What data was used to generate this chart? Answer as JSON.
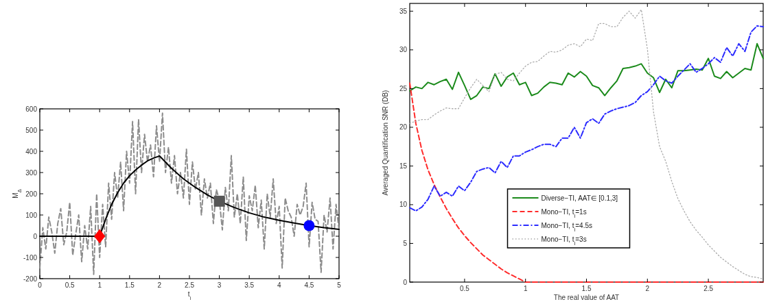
{
  "chart_data": [
    {
      "type": "line",
      "xlabel": "t$_{i}$",
      "ylabel": "M$_{Δ}$",
      "xlim": [
        0,
        5
      ],
      "ylim": [
        -200,
        600
      ],
      "xticks": [
        0,
        0.5,
        1,
        1.5,
        2,
        2.5,
        3,
        3.5,
        4,
        4.5,
        5
      ],
      "yticks": [
        -200,
        -100,
        0,
        100,
        200,
        300,
        400,
        500,
        600
      ],
      "grid": false,
      "legend": false,
      "series": [
        {
          "color": "#8c8c8c",
          "line_style": "dashed",
          "x": [
            0,
            0.05,
            0.1,
            0.15,
            0.2,
            0.25,
            0.3,
            0.35,
            0.4,
            0.45,
            0.5,
            0.55,
            0.6,
            0.65,
            0.7,
            0.75,
            0.8,
            0.85,
            0.9,
            0.95,
            1,
            1.05,
            1.1,
            1.15,
            1.2,
            1.25,
            1.3,
            1.35,
            1.4,
            1.45,
            1.5,
            1.55,
            1.6,
            1.65,
            1.7,
            1.75,
            1.8,
            1.85,
            1.9,
            1.95,
            2,
            2.05,
            2.1,
            2.15,
            2.2,
            2.25,
            2.3,
            2.35,
            2.4,
            2.45,
            2.5,
            2.55,
            2.6,
            2.65,
            2.7,
            2.75,
            2.8,
            2.85,
            2.9,
            2.95,
            3,
            3.05,
            3.1,
            3.15,
            3.2,
            3.25,
            3.3,
            3.35,
            3.4,
            3.45,
            3.5,
            3.55,
            3.6,
            3.65,
            3.7,
            3.75,
            3.8,
            3.85,
            3.9,
            3.95,
            4,
            4.05,
            4.1,
            4.15,
            4.2,
            4.25,
            4.3,
            4.35,
            4.4,
            4.45,
            4.5,
            4.55,
            4.6,
            4.65,
            4.7,
            4.75,
            4.8,
            4.85,
            4.9,
            4.95,
            5
          ],
          "values": [
            -150,
            40,
            -60,
            90,
            20,
            -80,
            60,
            130,
            -40,
            20,
            160,
            -90,
            10,
            100,
            -120,
            50,
            -60,
            140,
            -180,
            200,
            -100,
            150,
            -50,
            250,
            80,
            300,
            180,
            350,
            120,
            400,
            250,
            540,
            200,
            550,
            300,
            480,
            350,
            430,
            280,
            520,
            350,
            580,
            300,
            420,
            250,
            380,
            200,
            300,
            180,
            410,
            150,
            350,
            220,
            300,
            100,
            270,
            180,
            250,
            60,
            220,
            170,
            30,
            230,
            120,
            380,
            90,
            200,
            60,
            280,
            -20,
            190,
            120,
            240,
            40,
            170,
            -60,
            200,
            90,
            270,
            60,
            140,
            -150,
            180,
            120,
            90,
            0,
            150,
            100,
            140,
            250,
            -50,
            160,
            80,
            70,
            -170,
            100,
            20,
            180,
            -60,
            150,
            30
          ]
        },
        {
          "color": "#000000",
          "line_style": "solid",
          "x": [
            0,
            0.5,
            1,
            1.1,
            1.2,
            1.3,
            1.4,
            1.5,
            1.6,
            1.7,
            1.8,
            1.9,
            2,
            2.2,
            2.4,
            2.6,
            2.8,
            3,
            3.25,
            3.5,
            3.75,
            4,
            4.25,
            4.5,
            4.75,
            5
          ],
          "values": [
            0,
            0,
            0,
            80,
            150,
            205,
            250,
            285,
            312,
            335,
            355,
            368,
            378,
            320,
            270,
            230,
            195,
            165,
            135,
            110,
            90,
            75,
            62,
            50,
            40,
            32
          ]
        },
        {
          "type": "scatter",
          "marker": "diamond",
          "color": "#ff0000",
          "x": [
            1
          ],
          "values": [
            0
          ]
        },
        {
          "type": "scatter",
          "marker": "square",
          "color": "#555555",
          "x": [
            3
          ],
          "values": [
            165
          ]
        },
        {
          "type": "scatter",
          "marker": "circle",
          "color": "#0000ff",
          "x": [
            4.5
          ],
          "values": [
            50
          ]
        }
      ]
    },
    {
      "type": "line",
      "xlabel": "The real value of AAT",
      "ylabel": "Averaged Quantification SNR (DB)",
      "xlim": [
        0.05,
        2.95
      ],
      "ylim": [
        0,
        36
      ],
      "xticks": [
        0.5,
        1,
        1.5,
        2,
        2.5
      ],
      "yticks": [
        0,
        5,
        10,
        15,
        20,
        25,
        30,
        35
      ],
      "grid": false,
      "legend": "bottom",
      "x": [
        0.05,
        0.1,
        0.15,
        0.2,
        0.25,
        0.3,
        0.35,
        0.4,
        0.45,
        0.5,
        0.55,
        0.6,
        0.65,
        0.7,
        0.75,
        0.8,
        0.85,
        0.9,
        0.95,
        1,
        1.05,
        1.1,
        1.15,
        1.2,
        1.25,
        1.3,
        1.35,
        1.4,
        1.45,
        1.5,
        1.55,
        1.6,
        1.65,
        1.7,
        1.75,
        1.8,
        1.85,
        1.9,
        1.95,
        2,
        2.05,
        2.1,
        2.15,
        2.2,
        2.25,
        2.3,
        2.35,
        2.4,
        2.45,
        2.5,
        2.55,
        2.6,
        2.65,
        2.7,
        2.75,
        2.8,
        2.85,
        2.9,
        2.95
      ],
      "series": [
        {
          "name": "Diverse−TI, AAT∈ [0.1,3]",
          "color": "#1a8a1a",
          "line_style": "solid",
          "values": [
            24.7,
            25.2,
            25.0,
            25.8,
            25.5,
            25.9,
            26.2,
            24.9,
            27.1,
            25.4,
            23.6,
            24.1,
            25.2,
            25.0,
            26.9,
            25.3,
            26.5,
            27.0,
            25.5,
            25.8,
            24.1,
            24.4,
            25.2,
            25.8,
            25.7,
            25.5,
            27.0,
            26.5,
            27.2,
            26.6,
            25.4,
            25.1,
            24.1,
            25.1,
            26.0,
            27.6,
            27.7,
            27.9,
            28.2,
            27.0,
            26.4,
            24.5,
            26.2,
            25.1,
            27.3,
            27.3,
            27.4,
            27.5,
            27.4,
            28.9,
            26.6,
            26.3,
            27.2,
            26.4,
            27.0,
            27.6,
            27.4,
            30.8,
            28.9
          ]
        },
        {
          "name": "Mono−TI, t$_{i}$=1s",
          "color": "#ff2a2a",
          "line_style": "dashed",
          "x": [
            0.05,
            0.1,
            0.15,
            0.2,
            0.25,
            0.3,
            0.35,
            0.4,
            0.45,
            0.5,
            0.55,
            0.6,
            0.65,
            0.7,
            0.75,
            0.8,
            0.85,
            0.9,
            0.95,
            1,
            2.95
          ],
          "values": [
            25.7,
            20.5,
            17,
            14.5,
            12.6,
            11,
            9.5,
            8.2,
            7,
            6,
            5.1,
            4.3,
            3.5,
            2.9,
            2.3,
            1.7,
            1.2,
            0.8,
            0.4,
            0,
            0
          ]
        },
        {
          "name": "Mono−TI, t$_{i}$=4.5s",
          "color": "#2a2aff",
          "line_style": "dashdot",
          "values": [
            9.6,
            9.2,
            9.7,
            10.7,
            12.4,
            11.1,
            11.6,
            11.1,
            12.4,
            11.8,
            12.9,
            14.3,
            14.6,
            14.8,
            14.1,
            15.6,
            14.8,
            16.3,
            16.3,
            16.8,
            17.1,
            17.5,
            17.8,
            17.8,
            17.5,
            18.6,
            18.6,
            20,
            18.6,
            20.6,
            21.1,
            20.5,
            21.7,
            22.1,
            22.4,
            22.6,
            22.8,
            23.2,
            24.1,
            24.6,
            25.5,
            26.6,
            26,
            25.7,
            26.6,
            27.4,
            28.2,
            27.1,
            27.6,
            28.2,
            29,
            28.4,
            30.3,
            29.2,
            30.8,
            29.8,
            32.3,
            33.1,
            33
          ]
        },
        {
          "name": "Mono−TI, t$_{i}$=3s",
          "color": "#aaaaaa",
          "line_style": "dotted",
          "values": [
            20.5,
            20.8,
            21,
            21,
            21.6,
            22.1,
            22.5,
            22.4,
            22.4,
            23.8,
            25.1,
            26.2,
            25.4,
            24.6,
            26.8,
            27.1,
            26.2,
            26,
            27,
            27.9,
            28.4,
            28.5,
            29.2,
            29.8,
            29.7,
            30,
            30.6,
            30.8,
            30.4,
            31.4,
            31.2,
            33.4,
            33.4,
            33,
            33,
            34.2,
            35,
            34.1,
            35.2,
            30.1,
            22,
            17.5,
            15.6,
            13,
            10.8,
            9.2,
            7.8,
            6.7,
            5.8,
            4.8,
            4,
            3.2,
            2.6,
            2,
            1.5,
            1,
            0.7,
            0.6,
            0.4
          ]
        }
      ]
    }
  ]
}
